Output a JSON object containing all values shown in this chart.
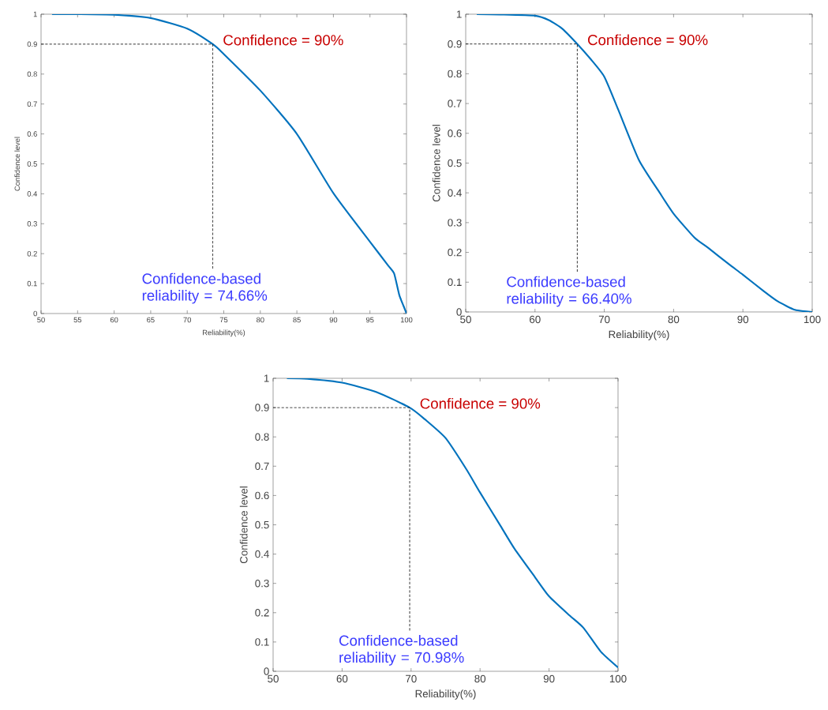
{
  "chart_data": [
    {
      "type": "line",
      "xlabel": "Reliability(%)",
      "ylabel": "Confidence level",
      "xlim": [
        50,
        100
      ],
      "ylim": [
        0,
        1
      ],
      "xticks": [
        50,
        55,
        60,
        65,
        70,
        75,
        80,
        85,
        90,
        95,
        100
      ],
      "yticks": [
        0,
        0.1,
        0.2,
        0.3,
        0.4,
        0.5,
        0.6,
        0.7,
        0.8,
        0.9,
        1
      ],
      "series": [
        {
          "color": "#0072bd",
          "line_style": "solid",
          "x": [
            51.5,
            55,
            60,
            65,
            70,
            73.5,
            75,
            80,
            85,
            90,
            95,
            97.5,
            98.3,
            99,
            99.6,
            100
          ],
          "values": [
            1,
            1,
            0.998,
            0.987,
            0.952,
            0.9,
            0.867,
            0.745,
            0.6,
            0.402,
            0.24,
            0.16,
            0.134,
            0.063,
            0.025,
            0
          ]
        },
        {
          "color": "#000000",
          "line_style": "dashed",
          "x": [
            50,
            73.5,
            73.5
          ],
          "values": [
            0.9,
            0.9,
            0.15
          ]
        }
      ],
      "annotations": [
        {
          "text": "Confidence  = 90%",
          "x": 73.5,
          "y": 0.9
        },
        {
          "text": "Confidence-based reliability  = 74.66%",
          "x": 73.5,
          "y": 0.15
        }
      ]
    },
    {
      "type": "line",
      "xlabel": "Reliability(%)",
      "ylabel": "Confidence level",
      "xlim": [
        50,
        100
      ],
      "ylim": [
        0,
        1
      ],
      "xticks": [
        50,
        60,
        70,
        80,
        90,
        100
      ],
      "yticks": [
        0,
        0.1,
        0.2,
        0.3,
        0.4,
        0.5,
        0.6,
        0.7,
        0.8,
        0.9,
        1
      ],
      "series": [
        {
          "color": "#0072bd",
          "line_style": "solid",
          "x": [
            51.6,
            55,
            60,
            62,
            64,
            66.1,
            68,
            70,
            72,
            75,
            78,
            80,
            83,
            85,
            88,
            90,
            93,
            95,
            97.5,
            100
          ],
          "values": [
            1,
            0.999,
            0.995,
            0.98,
            0.95,
            0.9,
            0.85,
            0.79,
            0.68,
            0.51,
            0.4,
            0.33,
            0.25,
            0.215,
            0.16,
            0.125,
            0.07,
            0.036,
            0.007,
            0
          ]
        },
        {
          "color": "#000000",
          "line_style": "dashed",
          "x": [
            50,
            66.1,
            66.1
          ],
          "values": [
            0.9,
            0.9,
            0.135
          ]
        }
      ],
      "annotations": [
        {
          "text": "Confidence  = 90%",
          "x": 66.1,
          "y": 0.9
        },
        {
          "text": "Confidence-based reliability  = 66.40%",
          "x": 66.1,
          "y": 0.135
        }
      ]
    },
    {
      "type": "line",
      "xlabel": "Reliability(%)",
      "ylabel": "Confidence level",
      "xlim": [
        50,
        100
      ],
      "ylim": [
        0,
        1
      ],
      "xticks": [
        50,
        60,
        70,
        80,
        90,
        100
      ],
      "yticks": [
        0,
        0.1,
        0.2,
        0.3,
        0.4,
        0.5,
        0.6,
        0.7,
        0.8,
        0.9,
        1
      ],
      "series": [
        {
          "color": "#0072bd",
          "line_style": "solid",
          "x": [
            52,
            55,
            60,
            65,
            69.8,
            72,
            75,
            78,
            80,
            83,
            85,
            88,
            90,
            93,
            95,
            97.5,
            100
          ],
          "values": [
            1,
            0.998,
            0.985,
            0.953,
            0.9,
            0.86,
            0.796,
            0.69,
            0.61,
            0.495,
            0.418,
            0.32,
            0.256,
            0.19,
            0.148,
            0.067,
            0.013
          ]
        },
        {
          "color": "#000000",
          "line_style": "dashed",
          "x": [
            50,
            69.8,
            69.8
          ],
          "values": [
            0.9,
            0.9,
            0.139
          ]
        }
      ],
      "annotations": [
        {
          "text": "Confidence  = 90%",
          "x": 69.8,
          "y": 0.9
        },
        {
          "text": "Confidence-based reliability  = 70.98%",
          "x": 69.8,
          "y": 0.139
        }
      ]
    }
  ]
}
